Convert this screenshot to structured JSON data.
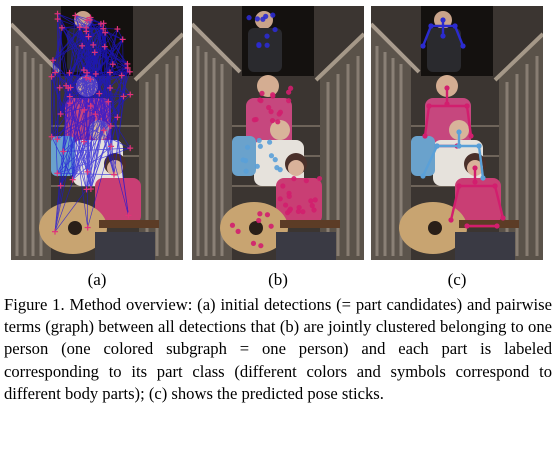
{
  "figure": {
    "panels": [
      {
        "label": "(a)"
      },
      {
        "label": "(b)"
      },
      {
        "label": "(c)"
      }
    ],
    "caption": "Figure 1. Method overview: (a) initial detections (= part candidates) and pairwise terms (graph) between all detections that (b) are jointly clustered belonging to one person (one colored subgraph = one person) and each part is labeled corresponding to its part class (different colors and symbols correspond to different body parts); (c) shows the predicted pose sticks.",
    "colors": {
      "graph_edges": "#1c14d8",
      "detections": "#e0337a",
      "person_1": "#2b2bd0",
      "person_2": "#d21e6e",
      "person_3": "#5aa0d8"
    }
  }
}
